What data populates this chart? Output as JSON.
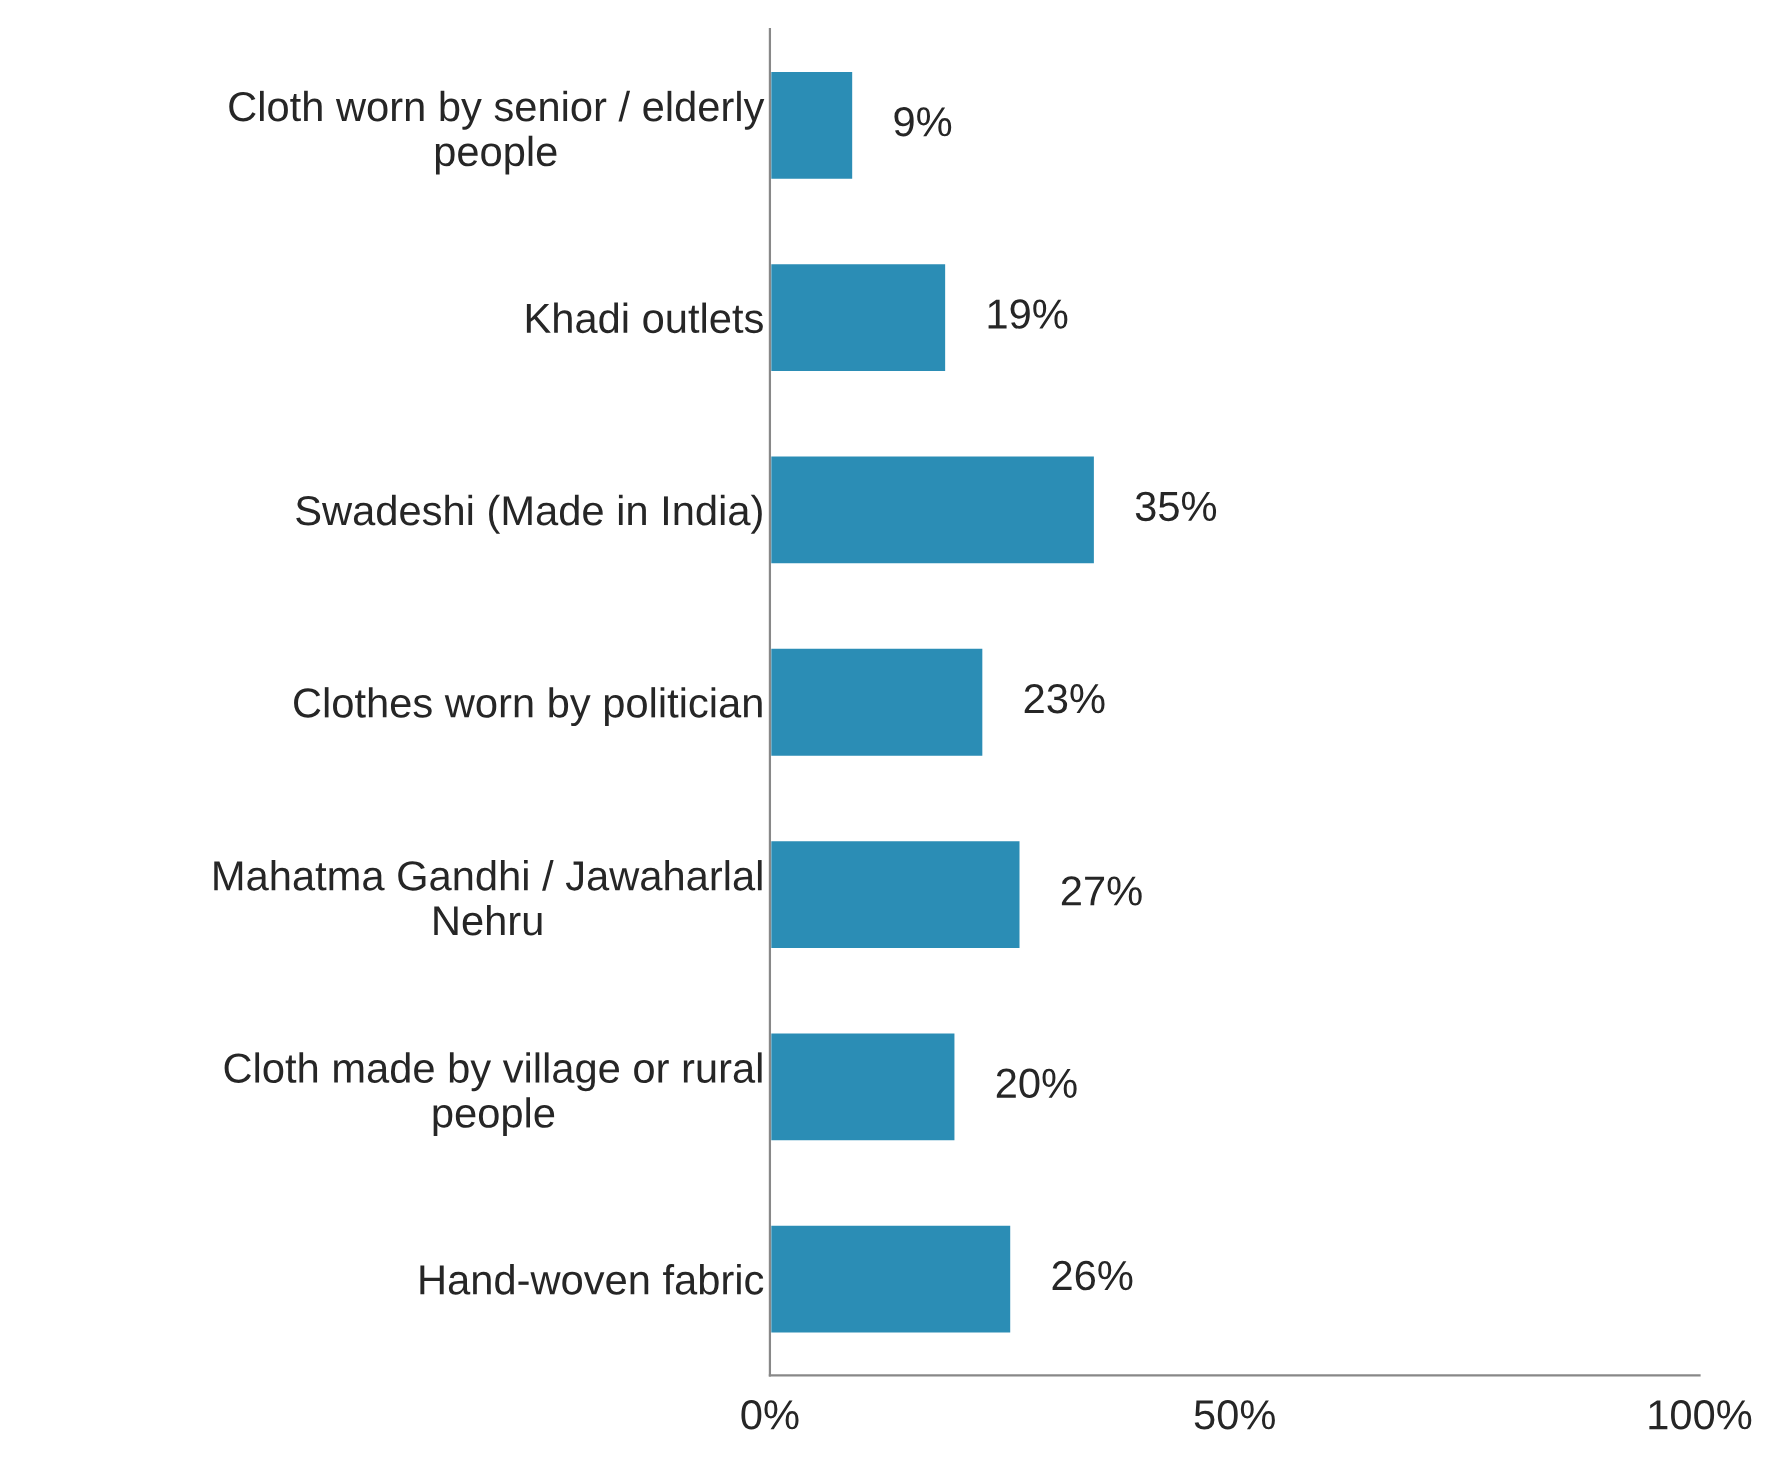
{
  "chart_data": {
    "type": "bar",
    "orientation": "horizontal",
    "categories": [
      "Cloth worn by senior / elderly\npeople",
      "Khadi outlets",
      "Swadeshi (Made in India)",
      "Clothes worn by politician",
      "Mahatma Gandhi / Jawaharlal\nNehru",
      "Cloth made by village or rural\npeople",
      "Hand-woven fabric"
    ],
    "values": [
      9,
      19,
      35,
      23,
      27,
      20,
      26
    ],
    "value_labels": [
      "9%",
      "19%",
      "35%",
      "23%",
      "27%",
      "20%",
      "26%"
    ],
    "color": "#2b8db5",
    "xlim": [
      0,
      100
    ],
    "xticks": [
      {
        "value": 0,
        "label": "0%"
      },
      {
        "value": 50,
        "label": "50%"
      },
      {
        "value": 100,
        "label": "100%"
      }
    ],
    "grid": false,
    "legend": false
  }
}
